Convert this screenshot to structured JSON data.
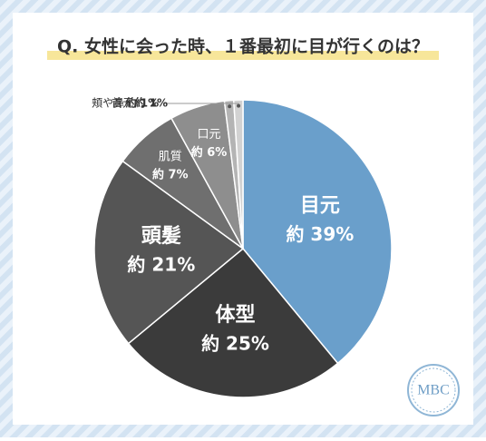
{
  "chart_data": {
    "type": "pie",
    "title": "Q. 女性に会った時、１番最初に目が行くのは？",
    "categories": [
      "目元",
      "体型",
      "頭髪",
      "肌質",
      "口元",
      "頬や鼻",
      "首元"
    ],
    "values": [
      39,
      25,
      21,
      7,
      6,
      1,
      1
    ],
    "value_labels": [
      "約 39%",
      "約 25%",
      "約 21%",
      "約 7%",
      "約 6%",
      "約 1%",
      "約 1%"
    ],
    "colors": [
      "#6a9fcb",
      "#3b3b3b",
      "#555555",
      "#6f6f6f",
      "#8e8e8e",
      "#b4b4b4",
      "#d2d2d2"
    ]
  },
  "logo": "MBC"
}
